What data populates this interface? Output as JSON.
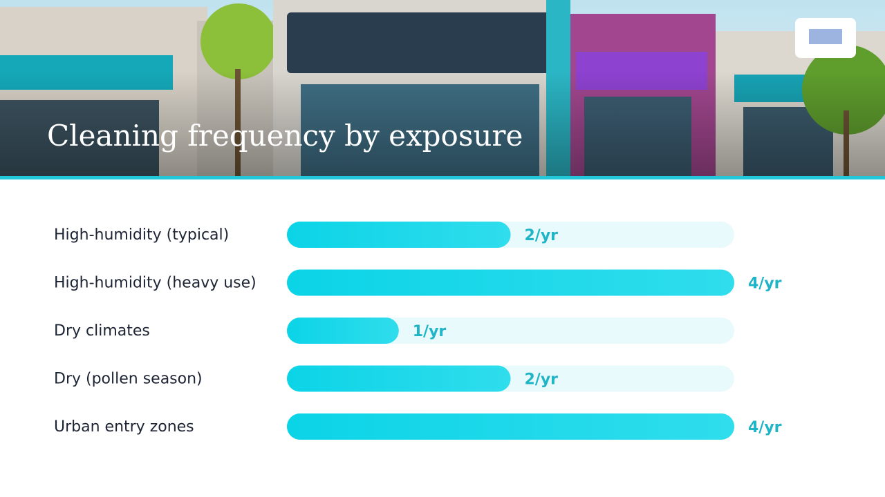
{
  "chart_data": {
    "type": "bar",
    "title": "Cleaning frequency by exposure",
    "categories": [
      "High-humidity (typical)",
      "High-humidity (heavy use)",
      "Dry climates",
      "Dry (pollen season)",
      "Urban entry zones"
    ],
    "values": [
      2,
      4,
      1,
      2,
      4
    ],
    "value_labels": [
      "2/yr",
      "4/yr",
      "1/yr",
      "2/yr",
      "4/yr"
    ],
    "color": "#1dd3e8",
    "xlim": [
      0,
      4
    ]
  }
}
